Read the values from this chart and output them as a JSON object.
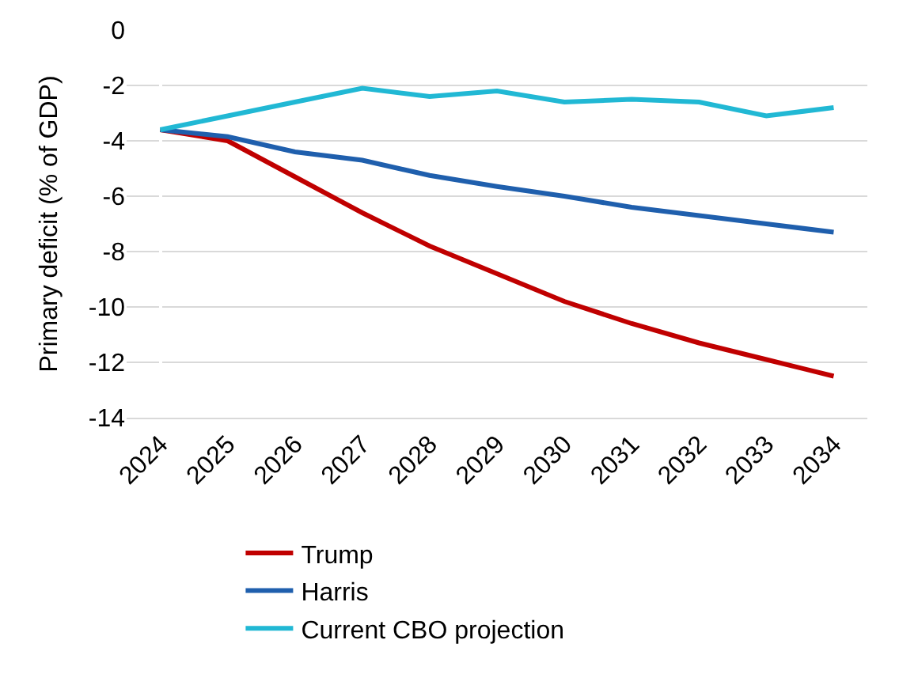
{
  "chart_data": {
    "type": "line",
    "ylabel": "Primary deficit (% of GDP)",
    "categories": [
      "2024",
      "2025",
      "2026",
      "2027",
      "2028",
      "2029",
      "2030",
      "2031",
      "2032",
      "2033",
      "2034"
    ],
    "series": [
      {
        "name": "Trump",
        "color": "#c00000",
        "values": [
          -3.6,
          -4.0,
          -5.3,
          -6.6,
          -7.8,
          -8.8,
          -9.8,
          -10.6,
          -11.3,
          -11.9,
          -12.5
        ]
      },
      {
        "name": "Harris",
        "color": "#1f5fad",
        "values": [
          -3.6,
          -3.85,
          -4.4,
          -4.7,
          -5.25,
          -5.65,
          -6.0,
          -6.4,
          -6.7,
          -7.0,
          -7.3
        ]
      },
      {
        "name": "Current CBO projection",
        "color": "#21b8d4",
        "values": [
          -3.6,
          -3.1,
          -2.6,
          -2.1,
          -2.4,
          -2.2,
          -2.6,
          -2.5,
          -2.6,
          -3.1,
          -2.8
        ]
      }
    ],
    "ylim": [
      -14,
      0
    ],
    "yticks": [
      -14,
      -12,
      -10,
      -8,
      -6,
      -4,
      -2,
      0
    ],
    "grid": "y",
    "legend": "bottom",
    "marker": "none",
    "line_style": "solid"
  }
}
